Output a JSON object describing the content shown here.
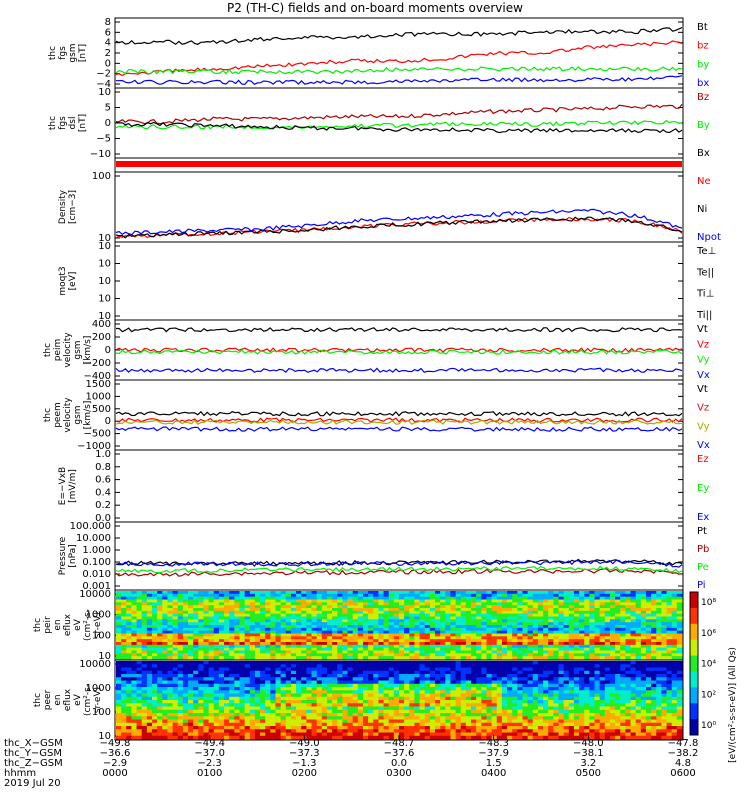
{
  "title": "P2 (TH-C) fields and on-board moments overview",
  "colors": {
    "black": "#000000",
    "red": "#ff0000",
    "green": "#00ee00",
    "blue": "#0000ff",
    "darkred": "#aa0000",
    "purple": "#8800aa"
  },
  "chart_data": [
    {
      "type": "line",
      "panel": "fgs_gsm",
      "ylabel_lines": [
        "thc",
        "fgs",
        "gsm",
        "[nT]"
      ],
      "yticks": [
        "8",
        "6",
        "4",
        "2",
        "0",
        "−2",
        "−4"
      ],
      "ylim": [
        -4,
        8
      ],
      "series": [
        {
          "name": "Bt",
          "color": "#000000",
          "values": [
            4,
            4,
            4,
            4.5,
            5,
            5,
            5.5,
            5.5,
            5.5,
            6,
            6,
            6,
            6.5
          ]
        },
        {
          "name": "bz",
          "color": "#ff0000",
          "values": [
            -2,
            -1.5,
            -1,
            -0.5,
            0,
            0.5,
            0.5,
            1,
            2,
            2,
            3,
            3.5,
            4
          ]
        },
        {
          "name": "by",
          "color": "#00ee00",
          "values": [
            -1.5,
            -1.5,
            -1.5,
            -1.5,
            -1.5,
            -1.5,
            -1,
            -1,
            -1,
            -1,
            -1,
            -1,
            -1
          ]
        },
        {
          "name": "bx",
          "color": "#0000ff",
          "values": [
            -3.5,
            -3.5,
            -3.5,
            -3.5,
            -3.5,
            -3.5,
            -3.3,
            -3.2,
            -3,
            -3,
            -3,
            -3,
            -2.5
          ]
        }
      ]
    },
    {
      "type": "line",
      "panel": "fgs_dsl",
      "ylabel_lines": [
        "thc",
        "fgs",
        "dsl",
        "[nT]"
      ],
      "yticks": [
        "10",
        "5",
        "0",
        "−5",
        "−10"
      ],
      "ylim": [
        -14,
        11
      ],
      "series": [
        {
          "name": "Bz",
          "color": "#aa0000",
          "values": [
            -1,
            -1,
            0,
            0,
            0.5,
            1,
            1,
            2,
            3,
            3.5,
            4,
            5,
            5
          ]
        },
        {
          "name": "By",
          "color": "#00ee00",
          "values": [
            -3,
            -3,
            -3,
            -3,
            -3,
            -2.5,
            -2.5,
            -2,
            -2,
            -2,
            -1.5,
            -1.5,
            -1
          ]
        },
        {
          "name": "Bx",
          "color": "#000000",
          "values": [
            -2,
            -2,
            -2.5,
            -3,
            -3.5,
            -3.5,
            -4,
            -4,
            -4.5,
            -4.5,
            -4.5,
            -4.5,
            -4.5
          ]
        }
      ]
    },
    {
      "type": "line",
      "panel": "density",
      "ylabel_lines": [
        "Density",
        "[cm−3]"
      ],
      "yticks": [
        "100",
        "10"
      ],
      "log": true,
      "ylim": [
        8,
        300
      ],
      "series": [
        {
          "name": "Ne",
          "color": "#ff0000",
          "values": [
            9,
            10,
            11,
            12,
            13,
            16,
            18,
            20,
            22,
            24,
            25,
            22,
            12
          ]
        },
        {
          "name": "Ni",
          "color": "#000000",
          "values": [
            9,
            10,
            11,
            12,
            13,
            16,
            18,
            20,
            22,
            24,
            25,
            22,
            12
          ]
        },
        {
          "name": "Npot",
          "color": "#0000ff",
          "values": [
            11,
            12,
            13,
            14,
            17,
            22,
            25,
            28,
            32,
            36,
            40,
            30,
            14
          ]
        }
      ]
    },
    {
      "type": "line",
      "panel": "temperature",
      "ylabel_lines": [
        "moqt3",
        "[eV]"
      ],
      "yticks": [
        "10",
        "10",
        "10",
        "10",
        "10"
      ],
      "log": true,
      "series": [
        {
          "name": "Te⊥"
        },
        {
          "name": "Te||"
        },
        {
          "name": "Ti⊥"
        },
        {
          "name": "Ti||"
        }
      ]
    },
    {
      "type": "line",
      "panel": "peim_velocity",
      "ylabel_lines": [
        "thc",
        "peim",
        "velocity",
        "gsm",
        "[km/s]"
      ],
      "yticks": [
        "400",
        "200",
        "0",
        "−200",
        "−400"
      ],
      "ylim": [
        -400,
        400
      ],
      "series": [
        {
          "name": "Vt",
          "color": "#000000",
          "values": [
            300,
            300,
            300,
            300,
            300,
            300,
            300,
            300,
            300,
            300,
            300,
            300,
            300
          ]
        },
        {
          "name": "Vz",
          "color": "#ff0000",
          "values": [
            0,
            0,
            0,
            0,
            0,
            0,
            0,
            0,
            0,
            0,
            0,
            0,
            0
          ]
        },
        {
          "name": "Vy",
          "color": "#00ee00",
          "values": [
            -30,
            -30,
            -30,
            -30,
            -30,
            -30,
            -30,
            -30,
            -30,
            -30,
            -30,
            -30,
            -30
          ]
        },
        {
          "name": "Vx",
          "color": "#0000ff",
          "values": [
            -300,
            -300,
            -300,
            -300,
            -300,
            -300,
            -300,
            -300,
            -300,
            -300,
            -300,
            -300,
            -300
          ]
        }
      ]
    },
    {
      "type": "line",
      "panel": "peem_velocity",
      "ylabel_lines": [
        "thc",
        "peem",
        "velocity",
        "gsm",
        "[km/s]"
      ],
      "yticks": [
        "1500",
        "1000",
        "500",
        "0",
        "−500",
        "−1000"
      ],
      "ylim": [
        -1000,
        1500
      ],
      "series": [
        {
          "name": "Vt",
          "color": "#000000",
          "values": [
            300,
            300,
            300,
            300,
            300,
            300,
            300,
            300,
            300,
            300,
            300,
            300,
            300
          ]
        },
        {
          "name": "Vz",
          "color": "#ff0000",
          "values": [
            50,
            50,
            50,
            50,
            50,
            50,
            50,
            50,
            50,
            50,
            50,
            50,
            50
          ]
        },
        {
          "name": "Vy",
          "color": "#aaaa00",
          "values": [
            -30,
            -30,
            -30,
            -30,
            -30,
            -30,
            -30,
            -30,
            -30,
            -30,
            -30,
            -30,
            -30
          ]
        },
        {
          "name": "Vx",
          "color": "#0000ff",
          "values": [
            -300,
            -300,
            -300,
            -300,
            -300,
            -300,
            -300,
            -300,
            -300,
            -300,
            -300,
            -300,
            -300
          ]
        }
      ]
    },
    {
      "type": "line",
      "panel": "efield",
      "ylabel_lines": [
        "E=−VxB",
        "[mV/m]"
      ],
      "yticks": [
        "1.0",
        "0.8",
        "0.6",
        "0.4",
        "0.2",
        "0.0"
      ],
      "ylim": [
        0,
        1
      ],
      "series": [
        {
          "name": "Ez",
          "color": "#ff0000"
        },
        {
          "name": "Ey",
          "color": "#00ee00"
        },
        {
          "name": "Ex",
          "color": "#0000ff"
        }
      ]
    },
    {
      "type": "line",
      "panel": "pressure",
      "ylabel_lines": [
        "Pressure",
        "[nPa]"
      ],
      "yticks": [
        "100.000",
        "10.000",
        "1.000",
        "0.100",
        "0.010",
        "0.001"
      ],
      "log": true,
      "series": [
        {
          "name": "Pt",
          "color": "#000000",
          "values": [
            0.09,
            0.08,
            0.08,
            0.08,
            0.08,
            0.09,
            0.09,
            0.09,
            0.1,
            0.1,
            0.12,
            0.12,
            0.06
          ]
        },
        {
          "name": "Pb",
          "color": "#aa0000",
          "values": [
            0.01,
            0.01,
            0.012,
            0.013,
            0.014,
            0.015,
            0.016,
            0.017,
            0.018,
            0.018,
            0.02,
            0.02,
            0.015
          ]
        },
        {
          "name": "Pe",
          "color": "#00ee00",
          "values": [
            0.02,
            0.02,
            0.022,
            0.024,
            0.025,
            0.026,
            0.027,
            0.028,
            0.03,
            0.03,
            0.032,
            0.03,
            0.02
          ]
        },
        {
          "name": "Pi",
          "color": "#0000ff",
          "values": [
            0.08,
            0.07,
            0.07,
            0.07,
            0.07,
            0.08,
            0.08,
            0.08,
            0.09,
            0.09,
            0.1,
            0.1,
            0.05
          ]
        }
      ]
    },
    {
      "type": "heatmap",
      "panel": "peir_spectrogram",
      "ylabel_lines": [
        "thc",
        "peir",
        "en",
        "eflux",
        "eV",
        "(cm²-s-",
        "sr-eV)"
      ],
      "yticks": [
        "10000",
        "1000",
        "100",
        "10"
      ],
      "log": true
    },
    {
      "type": "heatmap",
      "panel": "peer_spectrogram",
      "ylabel_lines": [
        "thc",
        "peer",
        "en",
        "eflux",
        "eV",
        "(cm²-s-",
        "sr-eV)"
      ],
      "yticks": [
        "10000",
        "1000",
        "100",
        "10"
      ],
      "log": true
    }
  ],
  "colorbar": {
    "ticks": [
      "10⁸",
      "10⁶",
      "10⁴",
      "10²",
      "10⁰"
    ],
    "label": "[eV/(cm²-s-sr-eV)] (All Qs)"
  },
  "xaxis": {
    "rows": [
      {
        "label": "thc_X−GSM",
        "values": [
          "−49.8",
          "−49.4",
          "−49.0",
          "−48.7",
          "−48.3",
          "−48.0",
          "−47.8"
        ]
      },
      {
        "label": "thc_Y−GSM",
        "values": [
          "−36.6",
          "−37.0",
          "−37.3",
          "−37.6",
          "−37.9",
          "−38.1",
          "−38.2"
        ]
      },
      {
        "label": "thc_Z−GSM",
        "values": [
          "−2.9",
          "−2.3",
          "−1.3",
          "0.0",
          "1.5",
          "3.2",
          "4.8"
        ]
      },
      {
        "label": "hhmm",
        "values": [
          "0000",
          "0100",
          "0200",
          "0300",
          "0400",
          "0500",
          "0600"
        ]
      }
    ],
    "date": "2019 Jul 20"
  }
}
